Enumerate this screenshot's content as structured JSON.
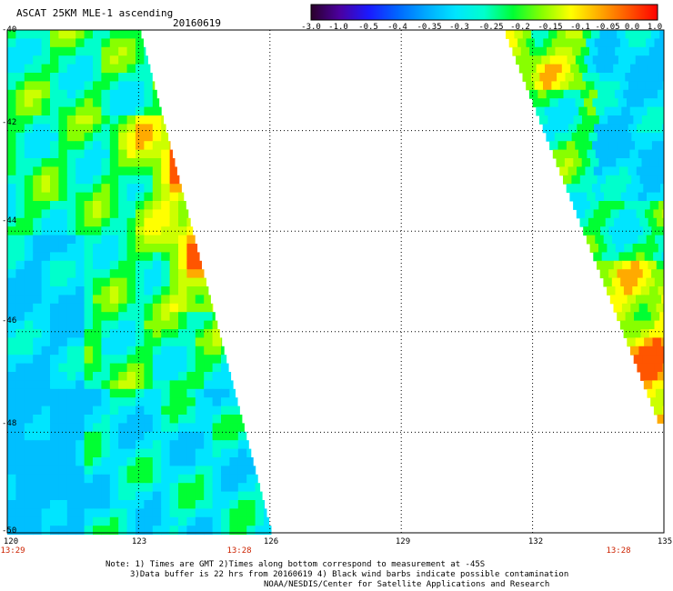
{
  "title": "ASCAT 25KM MLE-1 ascending",
  "date": "20160619",
  "colorbar": {
    "tick_labels": [
      "-3.0",
      "-1.0",
      "-0.5",
      "-0.4",
      "-0.35",
      "-0.3",
      "-0.25",
      "-0.2",
      "-0.15",
      "-0.1",
      "-0.05",
      "0.0",
      "1.0"
    ],
    "colors": [
      "#2a002a",
      "#4b00a0",
      "#1a1aff",
      "#0066ff",
      "#00aaff",
      "#00e5ff",
      "#00ffcc",
      "#00ff33",
      "#88ff00",
      "#ffff00",
      "#ffaa00",
      "#ff5500",
      "#ff0000"
    ]
  },
  "map": {
    "lat_ticks": [
      "-40",
      "-42",
      "-44",
      "-46",
      "-48",
      "-50"
    ],
    "lon_ticks": [
      "120",
      "123",
      "126",
      "129",
      "132",
      "135"
    ],
    "lat_range": [
      -50,
      -40
    ],
    "lon_range": [
      120,
      135
    ],
    "swaths": [
      {
        "name": "west swath",
        "time": "13:29",
        "time2": "13:28"
      },
      {
        "name": "east swath",
        "time": "13:28"
      }
    ]
  },
  "notes": {
    "line1": "Note: 1) Times are GMT 2)Times along bottom correspond to measurement at -45S",
    "line2": "3)Data buffer is 22 hrs from 20160619 4) Black wind barbs indicate possible contamination",
    "line3": "NOAA/NESDIS/Center for Satellite Applications and Research"
  }
}
